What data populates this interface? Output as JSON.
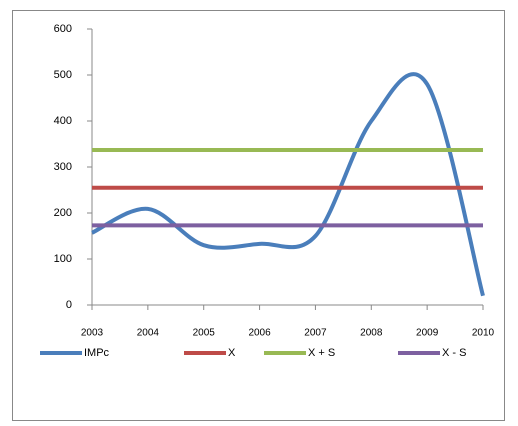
{
  "chart_data": {
    "type": "line",
    "categories": [
      "2003",
      "2004",
      "2005",
      "2006",
      "2007",
      "2008",
      "2009",
      "2010"
    ],
    "series": [
      {
        "name": "IMPc",
        "color": "#4a7ebb",
        "values": [
          157,
          209,
          130,
          133,
          150,
          400,
          480,
          20
        ]
      },
      {
        "name": "X",
        "color": "#be4b48",
        "values": [
          255,
          255,
          255,
          255,
          255,
          255,
          255,
          255
        ]
      },
      {
        "name": "X + S",
        "color": "#98b954",
        "values": [
          337,
          337,
          337,
          337,
          337,
          337,
          337,
          337
        ]
      },
      {
        "name": "X - S",
        "color": "#7d60a0",
        "values": [
          173,
          173,
          173,
          173,
          173,
          173,
          173,
          173
        ]
      }
    ],
    "ylim": [
      0,
      600
    ],
    "yticks": [
      0,
      100,
      200,
      300,
      400,
      500,
      600
    ],
    "smooth": true,
    "legend": "bottom"
  }
}
